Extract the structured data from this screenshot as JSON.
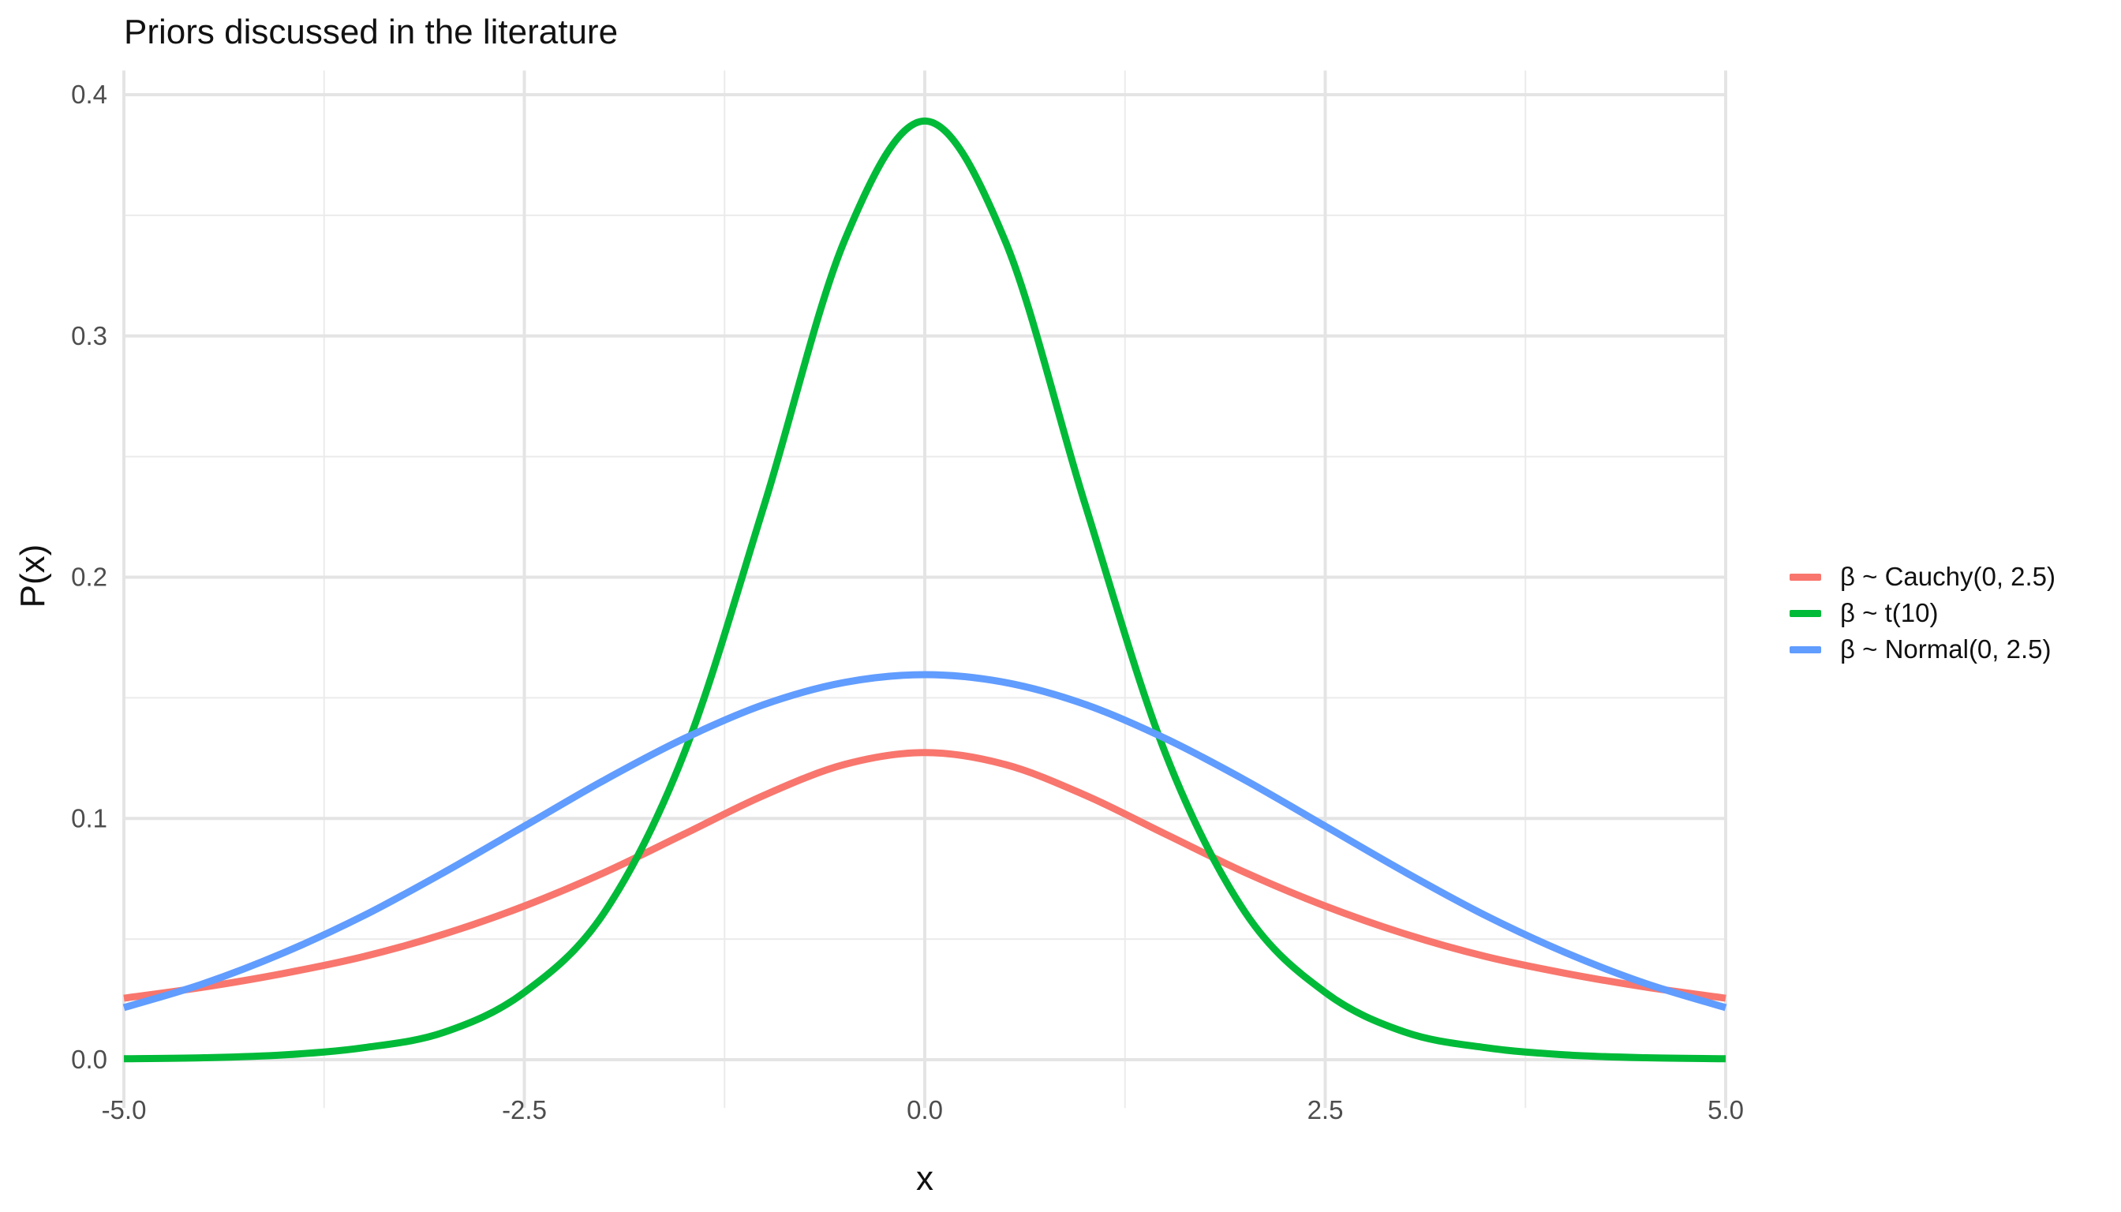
{
  "chart_data": {
    "type": "line",
    "title": "Priors discussed in the literature",
    "xlabel": "x",
    "ylabel": "P(x)",
    "xlim": [
      -5,
      5
    ],
    "ylim": [
      -0.02,
      0.41
    ],
    "x_ticks": [
      "-5.0",
      "-2.5",
      "0.0",
      "2.5",
      "5.0"
    ],
    "y_ticks": [
      "0.0",
      "0.1",
      "0.2",
      "0.3",
      "0.4"
    ],
    "grid": true,
    "legend_position": "right",
    "x": [
      -5.0,
      -4.5,
      -4.0,
      -3.5,
      -3.0,
      -2.5,
      -2.0,
      -1.5,
      -1.0,
      -0.5,
      0.0,
      0.5,
      1.0,
      1.5,
      2.0,
      2.5,
      3.0,
      3.5,
      4.0,
      4.5,
      5.0
    ],
    "series": [
      {
        "name": "β ~ Cauchy(0, 2.5)",
        "color": "#F8766D",
        "values": [
          0.0255,
          0.0301,
          0.0358,
          0.0428,
          0.0521,
          0.0637,
          0.0776,
          0.0936,
          0.1097,
          0.1224,
          0.1273,
          0.1224,
          0.1097,
          0.0936,
          0.0776,
          0.0637,
          0.0521,
          0.0428,
          0.0358,
          0.0301,
          0.0255
        ]
      },
      {
        "name": "β ~ t(10)",
        "color": "#00BA38",
        "values": [
          0.0004,
          0.0008,
          0.002,
          0.005,
          0.0114,
          0.0279,
          0.0611,
          0.1274,
          0.2304,
          0.3397,
          0.3891,
          0.3397,
          0.2304,
          0.1274,
          0.0611,
          0.0279,
          0.0114,
          0.005,
          0.002,
          0.0008,
          0.0004
        ]
      },
      {
        "name": "β ~ Normal(0, 2.5)",
        "color": "#619CFF",
        "values": [
          0.0216,
          0.0316,
          0.0444,
          0.0598,
          0.0777,
          0.0968,
          0.1159,
          0.1332,
          0.1473,
          0.1564,
          0.1596,
          0.1564,
          0.1473,
          0.1332,
          0.1159,
          0.0968,
          0.0777,
          0.0598,
          0.0444,
          0.0316,
          0.0216
        ]
      }
    ]
  }
}
